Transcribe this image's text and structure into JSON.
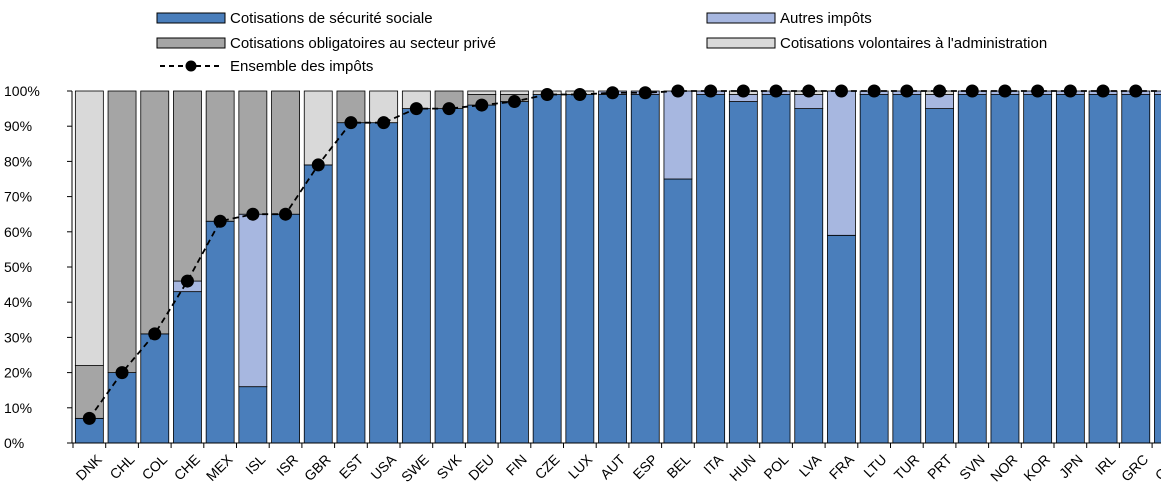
{
  "chart_data": {
    "type": "bar",
    "stacked": true,
    "categories": [
      "DNK",
      "CHL",
      "COL",
      "CHE",
      "MEX",
      "ISL",
      "ISR",
      "GBR",
      "EST",
      "USA",
      "SWE",
      "SVK",
      "DEU",
      "FIN",
      "CZE",
      "LUX",
      "AUT",
      "ESP",
      "BEL",
      "ITA",
      "HUN",
      "POL",
      "LVA",
      "FRA",
      "LTU",
      "TUR",
      "PRT",
      "SVN",
      "NOR",
      "KOR",
      "JPN",
      "IRL",
      "GRC",
      "CAN"
    ],
    "series": [
      {
        "name": "Cotisations de sécurité sociale",
        "color": "#4a7ebb",
        "values": [
          7,
          20,
          31,
          43,
          63,
          16,
          65,
          79,
          91,
          91,
          95,
          95,
          96,
          97,
          99,
          99,
          99,
          99,
          75,
          99,
          97,
          99,
          95,
          59,
          99,
          99,
          95,
          99,
          99,
          99,
          99,
          99,
          99,
          99
        ]
      },
      {
        "name": "Autres impôts",
        "color": "#a7b7e0",
        "values": [
          0,
          0,
          0,
          3,
          0,
          49,
          0,
          0,
          0,
          0,
          0,
          0,
          0,
          0,
          0,
          0,
          1,
          1,
          25,
          1,
          2,
          1,
          4,
          41,
          1,
          1,
          4,
          1,
          1,
          1,
          1,
          1,
          1,
          1
        ]
      },
      {
        "name": "Cotisations obligatoires au secteur privé",
        "color": "#a5a5a5",
        "values": [
          15,
          80,
          69,
          54,
          37,
          35,
          35,
          0,
          9,
          0,
          0,
          5,
          3,
          2,
          0,
          0,
          0,
          0,
          0,
          0,
          0,
          0,
          0,
          0,
          0,
          0,
          0,
          0,
          0,
          0,
          0,
          0,
          0,
          0
        ]
      },
      {
        "name": "Cotisations volontaires à l'administration",
        "color": "#d9d9d9",
        "values": [
          78,
          0,
          0,
          0,
          0,
          0,
          0,
          21,
          0,
          9,
          5,
          0,
          1,
          1,
          1,
          1,
          0,
          0,
          0,
          0,
          1,
          0,
          1,
          0,
          0,
          0,
          1,
          0,
          0,
          0,
          0,
          0,
          0,
          0
        ]
      }
    ],
    "line": {
      "name": "Ensemble des impôts",
      "values": [
        7,
        20,
        31,
        46,
        63,
        65,
        65,
        79,
        91,
        91,
        95,
        95,
        96,
        97,
        99,
        99,
        99.5,
        99.5,
        100,
        100,
        100,
        100,
        100,
        100,
        100,
        100,
        100,
        100,
        100,
        100,
        100,
        100,
        100,
        100
      ]
    },
    "y_ticks": [
      "0%",
      "10%",
      "20%",
      "30%",
      "40%",
      "50%",
      "60%",
      "70%",
      "80%",
      "90%",
      "100%"
    ],
    "ylim": [
      0,
      100
    ],
    "legend_position": "top",
    "grid": false
  }
}
